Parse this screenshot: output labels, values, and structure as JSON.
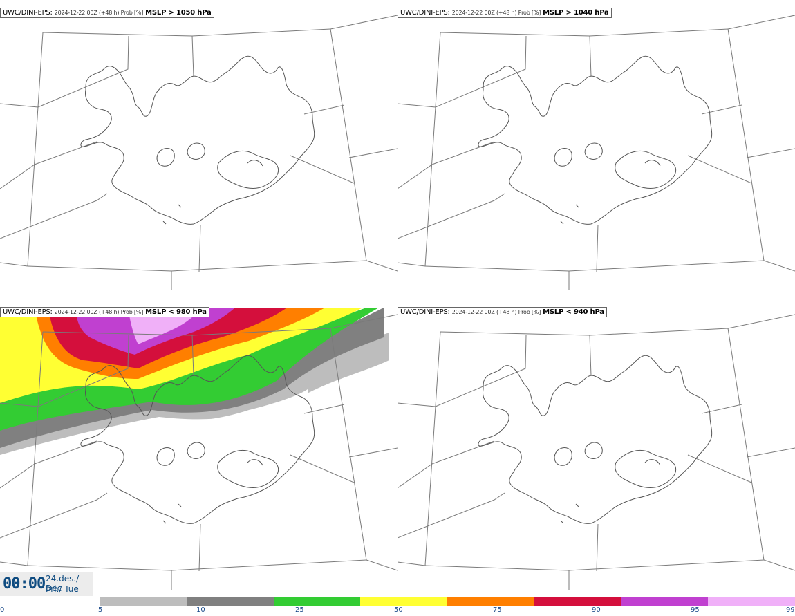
{
  "panels": [
    {
      "model": "UWC/DINI-EPS",
      "sep": ": ",
      "meta": "2024-12-22 00Z (+48 h) Prob [%]",
      "variable": "MSLP > 1050 hPa"
    },
    {
      "model": "UWC/DINI-EPS",
      "sep": ": ",
      "meta": "2024-12-22 00Z (+48 h) Prob [%]",
      "variable": "MSLP > 1040 hPa"
    },
    {
      "model": "UWC/DINI-EPS",
      "sep": ": ",
      "meta": "2024-12-22 00Z (+48 h) Prob [%]",
      "variable": "MSLP < 980 hPa"
    },
    {
      "model": "UWC/DINI-EPS",
      "sep": ": ",
      "meta": "2024-12-22 00Z (+48 h) Prob [%]",
      "variable": "MSLP < 940 hPa"
    }
  ],
  "timebox": {
    "time": "00:00",
    "date_line1": "24.des./ Dec",
    "date_line2": "Þri./ Tue"
  },
  "legend": {
    "labels": [
      "0",
      "5",
      "10",
      "25",
      "50",
      "75",
      "90",
      "95",
      "99"
    ],
    "colors": [
      "#bdbdbd",
      "#808080",
      "#33cc33",
      "#ffff33",
      "#ff7f00",
      "#d40f3c",
      "#c040d0",
      "#f0b0f8"
    ]
  }
}
